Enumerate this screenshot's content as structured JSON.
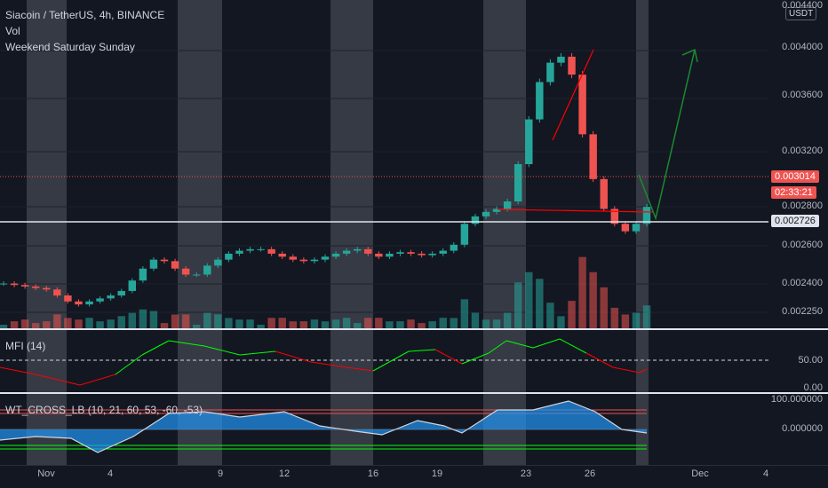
{
  "chart_title": {
    "symbol": "Siacoin / TetherUS, 4h, BINANCE",
    "vol": "Vol",
    "indicator": "Weekend Saturday Sunday"
  },
  "currency_badge": "USDT",
  "price_axis": {
    "ticks": [
      "0.004400",
      "0.004000",
      "0.003600",
      "0.003200",
      "0.002800",
      "0.002600",
      "0.002400",
      "0.002250"
    ],
    "current_price": "0.003014",
    "countdown": "02:33:21",
    "level_price": "0.002726"
  },
  "mfi": {
    "label": "MFI (14)",
    "ticks": [
      "50.00",
      "0.00"
    ]
  },
  "wt": {
    "label": "WT_CROSS_LB (10, 21, 60, 53, -60, -53)",
    "ticks": [
      "100.000000",
      "0.000000"
    ]
  },
  "time_axis": [
    "Nov",
    "4",
    "9",
    "12",
    "16",
    "19",
    "23",
    "26",
    "Dec",
    "4"
  ],
  "colors": {
    "background": "#131722",
    "up": "#26a69a",
    "down": "#ef5350",
    "weekend_band": "#9598a1",
    "current_price_tag": "#ef5350",
    "level_tag": "#e0e3eb",
    "mfi_up": "#00ff00",
    "mfi_down": "#ff0000",
    "wt_fill": "#2196f3",
    "up_arrow": "#1b8a2f",
    "trend_line": "#ff0000"
  },
  "chart_data": {
    "type": "candlestick",
    "approx_close_series": [
      0.0025,
      0.00249,
      0.00248,
      0.00247,
      0.00246,
      0.00242,
      0.00238,
      0.00236,
      0.00238,
      0.0024,
      0.00242,
      0.00245,
      0.00252,
      0.0026,
      0.00266,
      0.00265,
      0.0026,
      0.00256,
      0.00256,
      0.00262,
      0.00266,
      0.0027,
      0.00272,
      0.00273,
      0.00273,
      0.0027,
      0.00268,
      0.00266,
      0.00265,
      0.00266,
      0.00268,
      0.0027,
      0.00272,
      0.00273,
      0.0027,
      0.00268,
      0.0027,
      0.00271,
      0.0027,
      0.00269,
      0.0027,
      0.00272,
      0.00276,
      0.0029,
      0.00295,
      0.00298,
      0.003,
      0.00305,
      0.0033,
      0.0036,
      0.00385,
      0.00398,
      0.00402,
      0.0039,
      0.0035,
      0.0032,
      0.003,
      0.0029,
      0.00285,
      0.0029,
      0.003014
    ],
    "y_range": [
      0.0022,
      0.0044
    ],
    "weekend_bands": [
      "Oct 28-29",
      "Nov 4-5",
      "Nov 11-12",
      "Nov 18-19",
      "Nov 25-26",
      "Dec 2-3"
    ]
  }
}
